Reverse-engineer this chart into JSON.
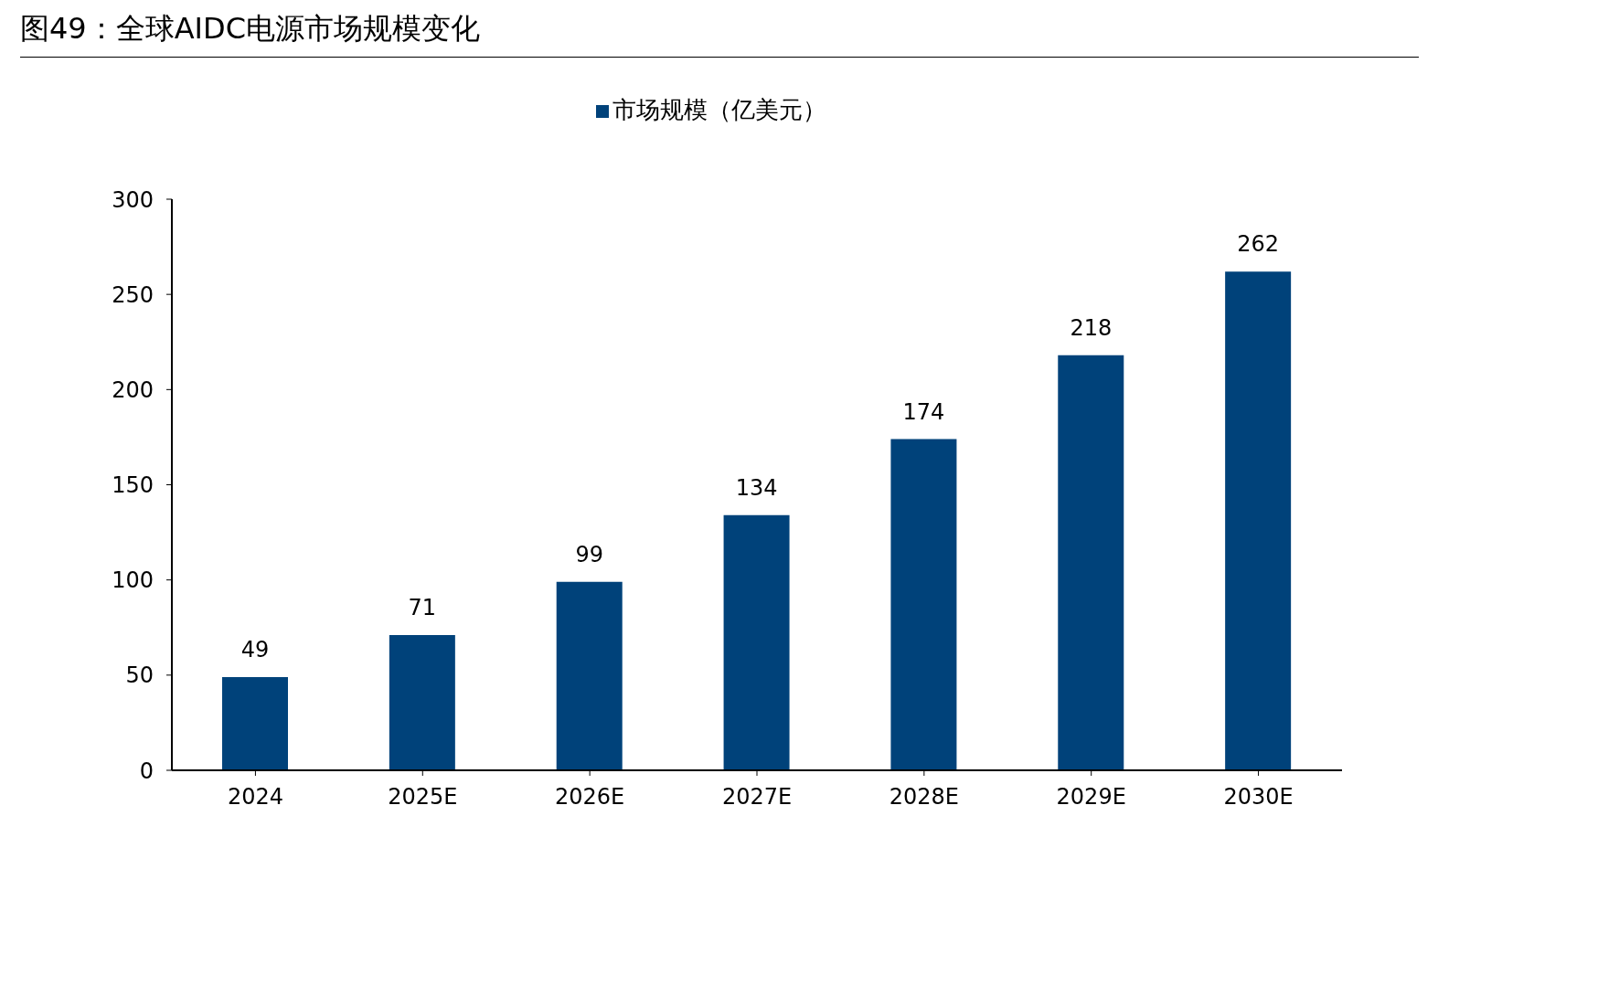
{
  "chart_data": {
    "type": "bar",
    "title": "图49：全球AIDC电源市场规模变化",
    "categories": [
      "2024",
      "2025E",
      "2026E",
      "2027E",
      "2028E",
      "2029E",
      "2030E"
    ],
    "series": [
      {
        "name": "市场规模（亿美元）",
        "color": "#00427a",
        "values": [
          49,
          71,
          99,
          134,
          174,
          218,
          262
        ]
      }
    ],
    "ylim": [
      0,
      300
    ],
    "yticks": [
      0,
      50,
      100,
      150,
      200,
      250,
      300
    ],
    "legend": "top",
    "data_labels": true
  }
}
